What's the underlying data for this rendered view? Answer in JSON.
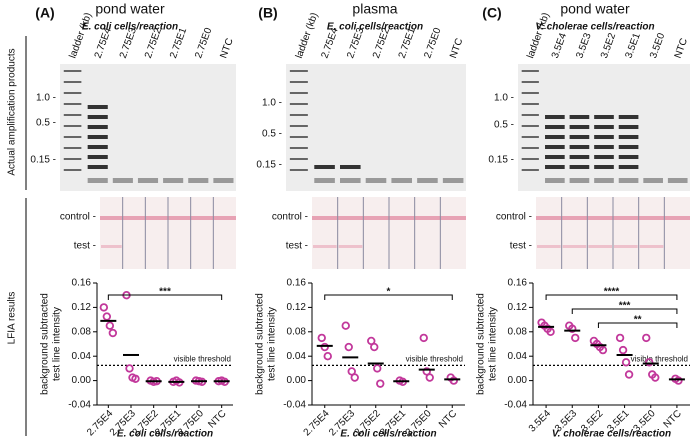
{
  "row_labels": [
    "Actual amplification products",
    "LFIA results"
  ],
  "panels": [
    {
      "label": "(A)",
      "title": "pond water",
      "subtitle": "E. coli cells/reaction",
      "lanes": [
        "ladder (kb)",
        "2.75E4",
        "2.75E3",
        "2.75E2",
        "2.75E1",
        "2.75E0",
        "NTC"
      ],
      "ladder_labels": [
        "1.0 -",
        "0.5 -",
        "0.15 -"
      ],
      "strip_labels": [
        "control -",
        "test -"
      ]
    },
    {
      "label": "(B)",
      "title": "plasma",
      "subtitle": "E. coli cells/reaction",
      "lanes": [
        "ladder (kb)",
        "2.75E4",
        "2.75E3",
        "2.75E2",
        "2.75E1",
        "2.75E0",
        "NTC"
      ],
      "ladder_labels": [
        "1.0 -",
        "0.5 -",
        "0.15 -"
      ],
      "strip_labels": [
        "control -",
        "test -"
      ]
    },
    {
      "label": "(C)",
      "title": "pond water",
      "subtitle": "V. cholerae cells/reaction",
      "lanes": [
        "ladder (kb)",
        "3.5E4",
        "3.5E3",
        "3.5E2",
        "3.5E1",
        "3.5E0",
        "NTC"
      ],
      "ladder_labels": [
        "1.0 -",
        "0.5 -",
        "0.15 -"
      ],
      "strip_labels": [
        "control -",
        "test -"
      ]
    }
  ],
  "chart_data": [
    {
      "type": "dot",
      "ylabel": [
        "background subtracted",
        "test line intensity"
      ],
      "xlabel": "E. coli cells/reaction",
      "categories": [
        "2.75E4",
        "2.75E3",
        "2.75E2",
        "2.75E1",
        "2.75E0",
        "NTC"
      ],
      "color": "#c2389b",
      "replicates": [
        [
          0.12,
          0.105,
          0.09,
          0.078
        ],
        [
          0.14,
          0.02,
          0.005,
          0.003
        ],
        [
          0.0,
          -0.002,
          -0.001
        ],
        [
          -0.002,
          0.0,
          -0.003
        ],
        [
          0.0,
          -0.001,
          -0.002
        ],
        [
          -0.001,
          0.0,
          -0.002
        ]
      ],
      "means": [
        0.098,
        0.042,
        -0.001,
        -0.002,
        -0.001,
        -0.001
      ],
      "threshold": {
        "label": "visible threshold",
        "value": 0.025
      },
      "brackets": [
        {
          "label": "***",
          "between": [
            "2.75E4",
            "NTC"
          ]
        }
      ],
      "ylim": [
        -0.04,
        0.16
      ],
      "yticks": [
        -0.04,
        {
          "value": 0,
          "label": "0.00"
        },
        0.04,
        0.08,
        0.12,
        0.16
      ]
    },
    {
      "type": "dot",
      "ylabel": [
        "background subtracted",
        "test line intensity"
      ],
      "xlabel": "E. coli cells/reaction",
      "categories": [
        "2.75E4",
        "2.75E3",
        "2.75E2",
        "2.75E1",
        "2.75E0",
        "NTC"
      ],
      "color": "#c2389b",
      "replicates": [
        [
          0.07,
          0.055,
          0.04
        ],
        [
          0.09,
          0.055,
          0.015,
          0.005
        ],
        [
          0.065,
          0.055,
          0.02,
          -0.005
        ],
        [
          0.0,
          -0.002
        ],
        [
          0.07,
          0.015,
          0.005
        ],
        [
          0.005,
          0.0
        ]
      ],
      "means": [
        0.057,
        0.038,
        0.028,
        -0.001,
        0.018,
        0.002
      ],
      "threshold": {
        "label": "visible threshold",
        "value": 0.025
      },
      "brackets": [
        {
          "label": "*",
          "between": [
            "2.75E4",
            "NTC"
          ]
        }
      ],
      "ylim": [
        -0.04,
        0.16
      ],
      "yticks": [
        -0.04,
        {
          "value": 0,
          "label": "0.00"
        },
        0.04,
        0.08,
        0.12,
        0.16
      ]
    },
    {
      "type": "dot",
      "ylabel": [
        "background subtracted",
        "test line intensity"
      ],
      "xlabel": "V. cholerae cells/reaction",
      "categories": [
        "3.5E4",
        "3.5E3",
        "3.5E2",
        "3.5E1",
        "3.5E0",
        "NTC"
      ],
      "color": "#c2389b",
      "replicates": [
        [
          0.095,
          0.09,
          0.085,
          0.08
        ],
        [
          0.09,
          0.085,
          0.07
        ],
        [
          0.065,
          0.06,
          0.055,
          0.05
        ],
        [
          0.07,
          0.05,
          0.03,
          0.01
        ],
        [
          0.07,
          0.03,
          0.01,
          0.005
        ],
        [
          0.003,
          0.0
        ]
      ],
      "means": [
        0.088,
        0.082,
        0.058,
        0.042,
        0.028,
        0.002
      ],
      "threshold": {
        "label": "visible threshold",
        "value": 0.025
      },
      "brackets": [
        {
          "label": "****",
          "between": [
            "3.5E4",
            "NTC"
          ]
        },
        {
          "label": "***",
          "between": [
            "3.5E3",
            "NTC"
          ]
        },
        {
          "label": "**",
          "between": [
            "3.5E2",
            "NTC"
          ]
        }
      ],
      "ylim": [
        -0.04,
        0.16
      ],
      "yticks": [
        -0.04,
        {
          "value": 0,
          "label": "0.00"
        },
        0.04,
        0.08,
        0.12,
        0.16
      ]
    }
  ]
}
